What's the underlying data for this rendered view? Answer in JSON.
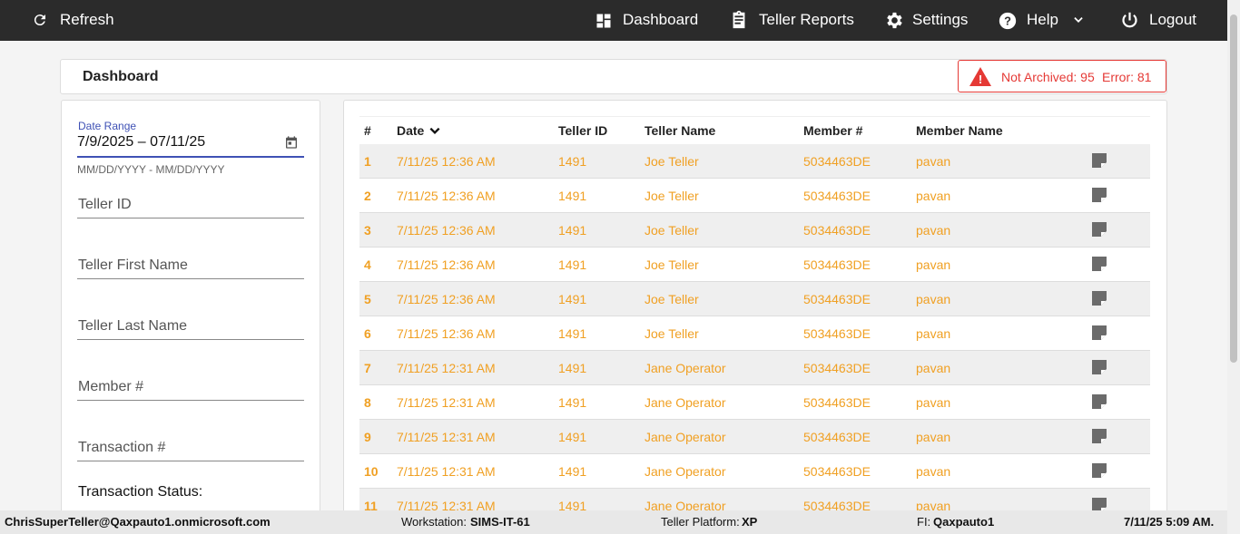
{
  "nav": {
    "refresh": "Refresh",
    "items": [
      "Dashboard",
      "Teller Reports",
      "Settings",
      "Help",
      "Logout"
    ]
  },
  "header": {
    "title": "Dashboard",
    "not_archived": "Not Archived: 95",
    "error": "Error: 81"
  },
  "filters": {
    "date_label": "Date Range",
    "date_value": "7/9/2025 – 07/11/25",
    "date_hint": "MM/DD/YYYY - MM/DD/YYYY",
    "fields": [
      "Teller ID",
      "Teller First Name",
      "Teller Last Name",
      "Member #",
      "Transaction #"
    ],
    "status_label": "Transaction Status:"
  },
  "table": {
    "columns": [
      "#",
      "Date",
      "Teller ID",
      "Teller Name",
      "Member #",
      "Member Name"
    ],
    "rows": [
      [
        "1",
        "7/11/25 12:36 AM",
        "1491",
        "Joe Teller",
        "5034463DE",
        "pavan"
      ],
      [
        "2",
        "7/11/25 12:36 AM",
        "1491",
        "Joe Teller",
        "5034463DE",
        "pavan"
      ],
      [
        "3",
        "7/11/25 12:36 AM",
        "1491",
        "Joe Teller",
        "5034463DE",
        "pavan"
      ],
      [
        "4",
        "7/11/25 12:36 AM",
        "1491",
        "Joe Teller",
        "5034463DE",
        "pavan"
      ],
      [
        "5",
        "7/11/25 12:36 AM",
        "1491",
        "Joe Teller",
        "5034463DE",
        "pavan"
      ],
      [
        "6",
        "7/11/25 12:36 AM",
        "1491",
        "Joe Teller",
        "5034463DE",
        "pavan"
      ],
      [
        "7",
        "7/11/25 12:31 AM",
        "1491",
        "Jane Operator",
        "5034463DE",
        "pavan"
      ],
      [
        "8",
        "7/11/25 12:31 AM",
        "1491",
        "Jane Operator",
        "5034463DE",
        "pavan"
      ],
      [
        "9",
        "7/11/25 12:31 AM",
        "1491",
        "Jane Operator",
        "5034463DE",
        "pavan"
      ],
      [
        "10",
        "7/11/25 12:31 AM",
        "1491",
        "Jane Operator",
        "5034463DE",
        "pavan"
      ],
      [
        "11",
        "7/11/25 12:31 AM",
        "1491",
        "Jane Operator",
        "5034463DE",
        "pavan"
      ]
    ]
  },
  "footer": {
    "user": "ChrisSuperTeller@Qaxpauto1.onmicrosoft.com",
    "workstation_label": "Workstation:",
    "workstation": "SIMS-IT-61",
    "platform_label": "Teller Platform:",
    "platform": "XP",
    "fi_label": "FI:",
    "fi": "Qaxpauto1",
    "datetime": "7/11/25 5:09 AM."
  }
}
